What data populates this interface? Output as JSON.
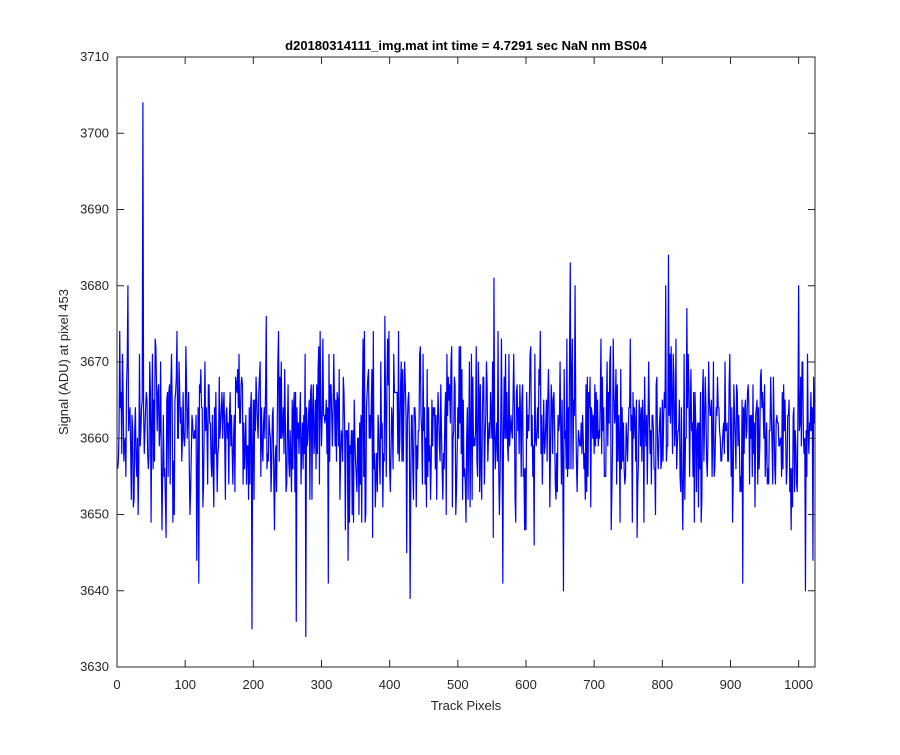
{
  "chart_data": {
    "type": "line",
    "title": "d20180314111_img.mat int time = 4.7291 sec  NaN nm BS04",
    "xlabel": "Track Pixels",
    "ylabel": "Signal (ADU) at pixel 453",
    "xlim": [
      0,
      1024
    ],
    "ylim": [
      3630,
      3710
    ],
    "xticks": [
      0,
      100,
      200,
      300,
      400,
      500,
      600,
      700,
      800,
      900,
      1000
    ],
    "yticks": [
      3630,
      3640,
      3650,
      3660,
      3670,
      3680,
      3690,
      3700,
      3710
    ],
    "grid": false,
    "series": [
      {
        "color": "#0000ff",
        "x_start": 1,
        "x_step": 1,
        "baseline": 3661,
        "noise_amplitude": 6,
        "point_count": 1024,
        "notable_points": [
          {
            "x": 38,
            "y": 3704
          },
          {
            "x": 198,
            "y": 3635
          },
          {
            "x": 277,
            "y": 3634
          },
          {
            "x": 430,
            "y": 3639
          },
          {
            "x": 120,
            "y": 3641
          },
          {
            "x": 655,
            "y": 3640
          },
          {
            "x": 1010,
            "y": 3640
          },
          {
            "x": 665,
            "y": 3683
          },
          {
            "x": 809,
            "y": 3684
          },
          {
            "x": 16,
            "y": 3680
          },
          {
            "x": 553,
            "y": 3681
          },
          {
            "x": 672,
            "y": 3680
          },
          {
            "x": 805,
            "y": 3680
          },
          {
            "x": 1000,
            "y": 3680
          },
          {
            "x": 263,
            "y": 3636
          },
          {
            "x": 310,
            "y": 3641
          },
          {
            "x": 566,
            "y": 3641
          },
          {
            "x": 918,
            "y": 3641
          }
        ]
      }
    ]
  }
}
